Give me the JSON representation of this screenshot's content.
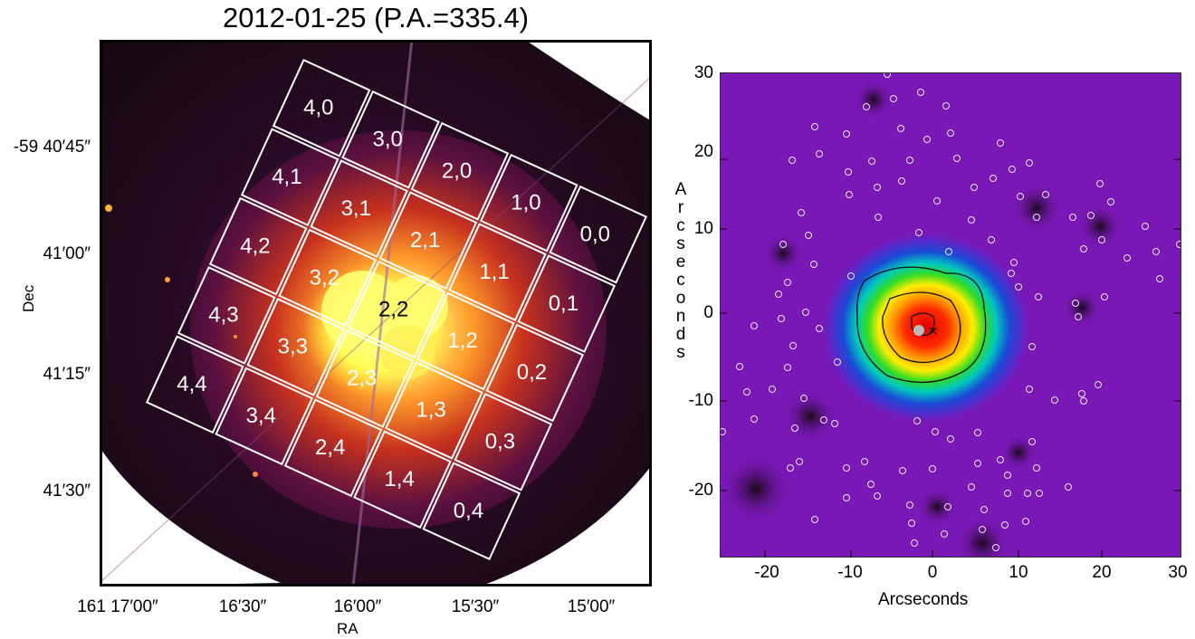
{
  "left": {
    "title": "2012-01-25 (P.A.=335.4)",
    "dec_ticks": [
      "-59 40′45″",
      "41′00″",
      "41′15″",
      "41′30″"
    ],
    "ra_ticks": [
      "161 17′00″",
      "16′30″",
      "16′00″",
      "15′30″",
      "15′00″"
    ],
    "xlabel": "RA",
    "ylabel": "Dec",
    "tiles": [
      "4,0",
      "3,0",
      "2,0",
      "1,0",
      "0,0",
      "4,1",
      "3,1",
      "2,1",
      "1,1",
      "0,1",
      "4,2",
      "3,2",
      "2,2",
      "1,2",
      "0,2",
      "4,3",
      "3,3",
      "2,3",
      "1,3",
      "0,3",
      "4,4",
      "3,4",
      "2,4",
      "1,4",
      "0,4"
    ]
  },
  "right": {
    "xlabel": "Arcseconds",
    "ylabel": "Arcseconds",
    "x_ticks": [
      "-20",
      "-10",
      "0",
      "10",
      "20",
      "30"
    ],
    "y_ticks": [
      "30",
      "20",
      "10",
      "0",
      "-10",
      "-20"
    ]
  },
  "colors": {
    "background_purple": "#7a17b7",
    "tile_outline": "#ffffff"
  }
}
